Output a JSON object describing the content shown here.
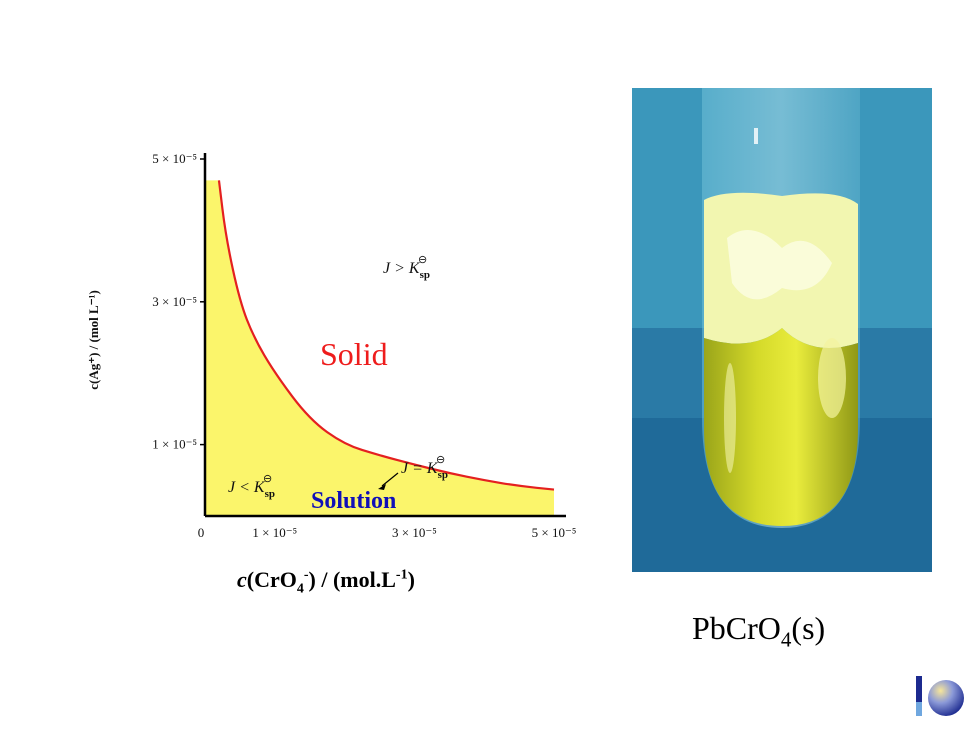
{
  "chart_data": {
    "type": "line",
    "xlabel": {
      "prefix": "c",
      "base": "(CrO",
      "sub": "4",
      "sup_charge": "-",
      "mid": ") / (mol.L",
      "sup_exp": "-1",
      "end": ")"
    },
    "ylabel": "c(Ag⁺) / (mol L⁻¹)",
    "x_ticks": [
      "0",
      "1 × 10⁻⁵",
      "3 × 10⁻⁵",
      "5 × 10⁻⁵"
    ],
    "y_ticks": [
      "1 × 10⁻⁵",
      "3 × 10⁻⁵",
      "5 × 10⁻⁵"
    ],
    "xlim": [
      0,
      5.5e-05
    ],
    "ylim": [
      0,
      5e-05
    ],
    "series": [
      {
        "name": "J = Ksp",
        "x": [
          2e-06,
          3e-06,
          5e-06,
          7e-06,
          1e-05,
          1.5e-05,
          2e-05,
          2.5e-05,
          3e-05,
          3.5e-05,
          4e-05,
          4.5e-05,
          5e-05
        ],
        "y": [
          4.7e-05,
          3.9e-05,
          3e-05,
          2.5e-05,
          2e-05,
          1.35e-05,
          1e-05,
          8.5e-06,
          7.2e-06,
          6e-06,
          5e-06,
          4.2e-06,
          3.7e-06
        ]
      }
    ],
    "annotations": {
      "above": "J > K",
      "on_curve": "J = K",
      "below": "J < K",
      "subscript": "sp",
      "superscript": "⊖"
    },
    "colors": {
      "curve": "#e42020",
      "fill": "#fbf56b",
      "axis": "#000000"
    }
  },
  "labels": {
    "solid": "Solid",
    "solution": "Solution",
    "photo_caption_base": "PbCrO",
    "photo_caption_sub": "4",
    "photo_caption_end": "(s)"
  },
  "colors": {
    "solid_text": "#ee1c1c",
    "solution_text": "#1010b8"
  }
}
